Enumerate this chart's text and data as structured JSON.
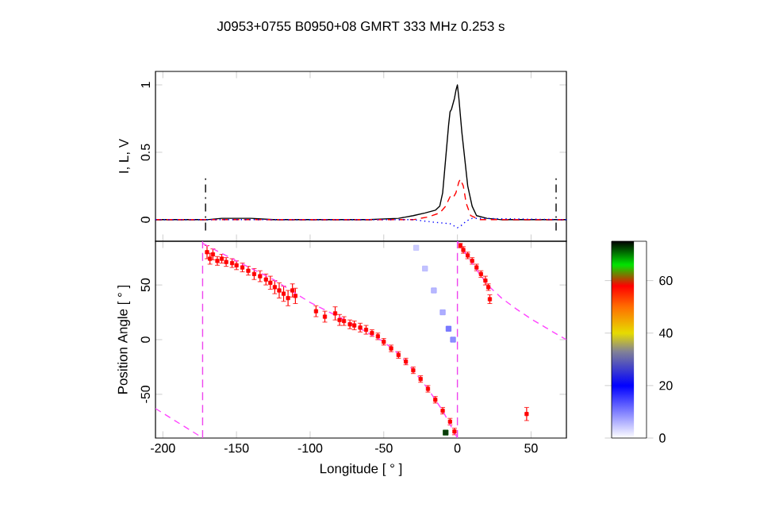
{
  "chart_data": [
    {
      "type": "line",
      "title": "J0953+0755     B0950+08     GMRT     333 MHz     0.253 s",
      "ylabel": "I, L, V",
      "xlim": [
        -205,
        74
      ],
      "ylim": [
        -0.16,
        1.1
      ],
      "xticks": [
        -200,
        -150,
        -100,
        -50,
        0,
        50
      ],
      "yticks": [
        0,
        0.5,
        1
      ],
      "tick_labels": "y",
      "grid": false,
      "ref_lines": [
        {
          "axis": "x",
          "value": -171,
          "color": "#000000",
          "line_style": "dashed"
        },
        {
          "axis": "x",
          "value": 67,
          "color": "#000000",
          "line_style": "dashed"
        }
      ],
      "series": [
        {
          "color": "#000000",
          "line_style": "solid",
          "x": [
            -205,
            -170,
            -160,
            -140,
            -125,
            -60,
            -40,
            -30,
            -22,
            -15,
            -12,
            -10,
            -8,
            -6,
            -5,
            -4,
            -2,
            -1,
            0,
            1,
            3,
            5,
            7,
            10,
            13,
            20,
            30,
            74
          ],
          "values": [
            0,
            0,
            0.01,
            0.01,
            0,
            0,
            0.01,
            0.03,
            0.05,
            0.07,
            0.1,
            0.2,
            0.45,
            0.7,
            0.8,
            0.82,
            0.9,
            0.96,
            1.0,
            0.9,
            0.65,
            0.45,
            0.25,
            0.1,
            0.03,
            0.01,
            0,
            0
          ]
        },
        {
          "color": "#ff0000",
          "line_style": "dashed",
          "x": [
            -205,
            -30,
            -20,
            -12,
            -8,
            -5,
            -3,
            -1,
            1,
            2,
            4,
            6,
            9,
            15,
            74
          ],
          "values": [
            0,
            0,
            0.02,
            0.05,
            0.1,
            0.17,
            0.16,
            0.2,
            0.28,
            0.3,
            0.25,
            0.12,
            0.03,
            0,
            0
          ]
        },
        {
          "color": "#0000ff",
          "line_style": "dotted",
          "x": [
            -205,
            -30,
            -15,
            -5,
            0,
            3,
            6,
            10,
            74
          ],
          "values": [
            0,
            0,
            -0.02,
            -0.03,
            -0.06,
            -0.04,
            -0.01,
            0.01,
            0
          ]
        }
      ]
    },
    {
      "type": "scatter",
      "xlabel": "Longitude [ ° ]",
      "ylabel": "Position Angle [ ° ]",
      "xlim": [
        -205,
        74
      ],
      "ylim": [
        -90,
        90
      ],
      "xticks": [
        -200,
        -150,
        -100,
        -50,
        0,
        50
      ],
      "yticks": [
        -50,
        0,
        50
      ],
      "clim": [
        0,
        75
      ],
      "cticks": [
        0,
        20,
        40,
        60
      ],
      "grid": false,
      "ref_lines": [
        {
          "axis": "x",
          "value": -173,
          "color": "#ee44ee",
          "line_style": "dashed"
        },
        {
          "axis": "x",
          "value": 0,
          "color": "#ee44ee",
          "line_style": "dashed"
        }
      ],
      "series": [
        {
          "type": "scatter",
          "marker": "square",
          "x": [
            -8,
            -28,
            -22,
            -16,
            -10,
            -6,
            -3
          ],
          "values": [
            -85,
            84,
            65,
            45,
            25,
            10,
            0
          ],
          "cvalues": [
            72,
            5,
            6,
            7,
            8,
            12,
            10
          ],
          "colors": [
            "#0a3a0a",
            "#ccccff",
            "#c2c2ff",
            "#b8b8ff",
            "#adadff",
            "#7a7aff",
            "#8e8eff"
          ]
        },
        {
          "type": "scatter",
          "marker": "square",
          "color": "#ff0000",
          "x": [
            -170,
            -168,
            -166,
            -163,
            -160,
            -157,
            -153,
            -150,
            -146,
            -142,
            -138,
            -134,
            -130,
            -127,
            -124,
            -121,
            -118,
            -115,
            -112,
            -110,
            -96,
            -90,
            -83,
            -80,
            -77,
            -73,
            -70,
            -66,
            -62,
            -58,
            -54,
            -50,
            -45,
            -40,
            -35,
            -30,
            -25,
            -20,
            -15,
            -10,
            -5,
            -2,
            2,
            4,
            7,
            10,
            13,
            16,
            19,
            21,
            22,
            47
          ],
          "values": [
            80,
            74,
            78,
            72,
            74,
            71,
            70,
            68,
            66,
            63,
            60,
            58,
            55,
            52,
            48,
            45,
            42,
            38,
            45,
            40,
            26,
            21,
            24,
            18,
            17,
            14,
            13,
            11,
            9,
            6,
            3,
            -2,
            -8,
            -14,
            -20,
            -28,
            -36,
            -45,
            -55,
            -65,
            -75,
            -84,
            86,
            82,
            77,
            72,
            66,
            60,
            54,
            48,
            37,
            -68
          ],
          "errors": [
            6,
            5,
            5,
            4,
            4,
            4,
            4,
            4,
            4,
            4,
            5,
            5,
            5,
            6,
            6,
            7,
            7,
            7,
            6,
            7,
            5,
            5,
            6,
            5,
            4,
            4,
            4,
            4,
            4,
            3,
            3,
            3,
            3,
            3,
            3,
            3,
            3,
            3,
            3,
            3,
            3,
            3,
            2,
            3,
            3,
            3,
            3,
            3,
            4,
            3,
            4,
            6
          ]
        },
        {
          "type": "line",
          "line_style": "dashed",
          "color": "#ff44ff",
          "x": [
            -205,
            -174
          ],
          "values": [
            -63,
            -89
          ]
        },
        {
          "type": "line",
          "line_style": "dashed",
          "color": "#ff44ff",
          "x": [
            -173,
            -150,
            -125,
            -100,
            -75,
            -50,
            -40,
            -30,
            -20,
            -10,
            0
          ],
          "values": [
            88,
            72,
            55,
            34,
            17,
            -2,
            -13,
            -28,
            -45,
            -65,
            -90
          ]
        },
        {
          "type": "line",
          "line_style": "dashed",
          "color": "#ff44ff",
          "x": [
            0,
            5,
            10,
            15,
            22,
            30,
            40,
            50,
            60,
            70,
            74
          ],
          "values": [
            90,
            80,
            70,
            60,
            48,
            38,
            28,
            19,
            11,
            3,
            0
          ]
        }
      ]
    }
  ]
}
